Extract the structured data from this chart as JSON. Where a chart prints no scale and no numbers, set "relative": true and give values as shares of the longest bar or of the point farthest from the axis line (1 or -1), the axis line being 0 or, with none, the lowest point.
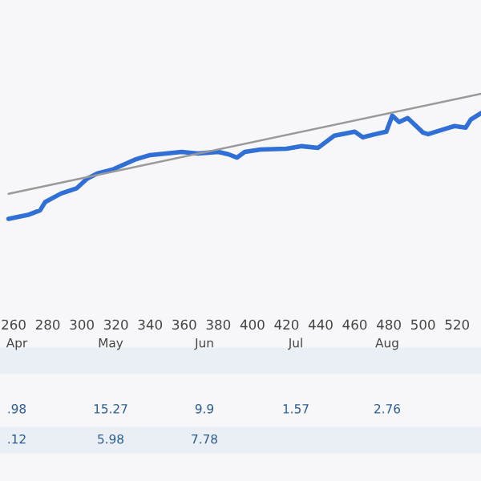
{
  "chart_data": {
    "type": "line",
    "relative": true,
    "tick_labels": "x",
    "xlim": [
      252,
      534
    ],
    "xticks": [
      260,
      280,
      300,
      320,
      340,
      360,
      380,
      400,
      420,
      440,
      460,
      480,
      500,
      520
    ],
    "series": [
      {
        "color": "#2f6fd6",
        "x": [
          257,
          269,
          275.5,
          278.5,
          287.8,
          297,
          303,
          309,
          318.5,
          331,
          340,
          358.5,
          368,
          380,
          386,
          391,
          395.5,
          404.7,
          420,
          429,
          438.5,
          448,
          460,
          464.7,
          472,
          478.5,
          482,
          486,
          491,
          500,
          503,
          512,
          518.5,
          525,
          528,
          534
        ],
        "values": [
          0,
          0.034,
          0.068,
          0.135,
          0.203,
          0.245,
          0.321,
          0.363,
          0.397,
          0.473,
          0.51,
          0.535,
          0.523,
          0.535,
          0.516,
          0.49,
          0.535,
          0.555,
          0.561,
          0.581,
          0.568,
          0.665,
          0.697,
          0.652,
          0.677,
          0.697,
          0.826,
          0.774,
          0.806,
          0.69,
          0.677,
          0.716,
          0.742,
          0.729,
          0.794,
          0.845
        ]
      },
      {
        "color": "#999999",
        "x": [
          257,
          534
        ],
        "values": [
          0.2,
          1
        ]
      }
    ],
    "annotations": [
      "Apr",
      "May",
      "Jun",
      "Jul",
      "Aug",
      ".98",
      "15.27",
      "9.9",
      "1.57",
      "2.76",
      ".12",
      "5.98",
      "7.78"
    ]
  }
}
